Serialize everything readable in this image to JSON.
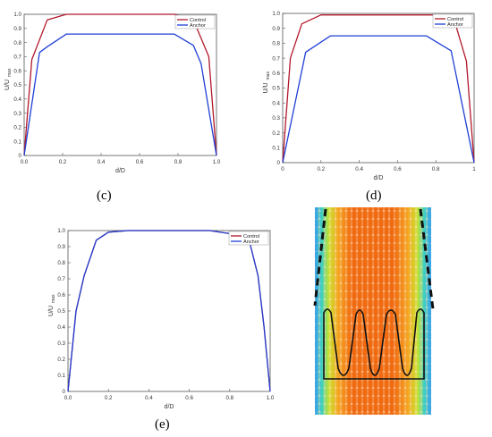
{
  "panels": [
    {
      "label": "(c)"
    },
    {
      "label": "(d)"
    },
    {
      "label": "(e)"
    }
  ],
  "colors": {
    "control": "#b2182b",
    "anchor": "#1f3fd6"
  },
  "chart_data": [
    {
      "type": "line",
      "panel": "(c)",
      "xlabel": "d/D",
      "ylabel": "U/U",
      "ylabel_sub": "max",
      "xlim": [
        0,
        1
      ],
      "ylim": [
        0,
        1
      ],
      "xticks": [
        "0.0",
        "0.2",
        "0.4",
        "0.6",
        "0.8",
        "1.0"
      ],
      "yticks": [
        "0",
        "0.1",
        "0.2",
        "0.3",
        "0.4",
        "0.5",
        "0.6",
        "0.7",
        "0.8",
        "0.9",
        "1.0"
      ],
      "legend": "top-right",
      "series": [
        {
          "name": "Control",
          "color": "#b2182b",
          "x": [
            0,
            0.04,
            0.12,
            0.22,
            0.5,
            0.78,
            0.88,
            0.96,
            1.0
          ],
          "y": [
            0,
            0.68,
            0.96,
            1.0,
            1.0,
            1.0,
            0.96,
            0.7,
            0
          ]
        },
        {
          "name": "Anchor",
          "color": "#1f3fd6",
          "x": [
            0,
            0.08,
            0.12,
            0.22,
            0.5,
            0.78,
            0.88,
            0.92,
            1.0
          ],
          "y": [
            0,
            0.73,
            0.77,
            0.86,
            0.86,
            0.86,
            0.78,
            0.65,
            0
          ]
        }
      ]
    },
    {
      "type": "line",
      "panel": "(d)",
      "xlabel": "d/D",
      "ylabel": "U/U",
      "ylabel_sub": "max",
      "xlim": [
        0,
        1
      ],
      "ylim": [
        0,
        1
      ],
      "xticks": [
        "0",
        "0.2",
        "0.4",
        "0.6",
        "0.8",
        "1"
      ],
      "yticks": [
        "0",
        "0.1",
        "0.2",
        "0.3",
        "0.4",
        "0.5",
        "0.6",
        "0.7",
        "0.8",
        "0.9",
        "1.0"
      ],
      "legend": "top-right",
      "series": [
        {
          "name": "Control",
          "color": "#b2182b",
          "x": [
            0,
            0.04,
            0.1,
            0.2,
            0.5,
            0.8,
            0.9,
            0.96,
            1.0
          ],
          "y": [
            0,
            0.7,
            0.93,
            0.99,
            0.99,
            0.99,
            0.94,
            0.68,
            0
          ]
        },
        {
          "name": "Anchor",
          "color": "#1f3fd6",
          "x": [
            0,
            0.12,
            0.25,
            0.5,
            0.75,
            0.88,
            1.0
          ],
          "y": [
            0,
            0.74,
            0.85,
            0.85,
            0.85,
            0.75,
            0
          ]
        }
      ]
    },
    {
      "type": "line",
      "panel": "(e)",
      "xlabel": "d/D",
      "ylabel": "U/U",
      "ylabel_sub": "max",
      "xlim": [
        0,
        1
      ],
      "ylim": [
        0,
        1
      ],
      "xticks": [
        "0.0",
        "0.2",
        "0.4",
        "0.6",
        "0.8",
        "1.0"
      ],
      "yticks": [
        "0",
        "0.1",
        "0.2",
        "0.3",
        "0.4",
        "0.5",
        "0.6",
        "0.7",
        "0.8",
        "0.9",
        "1.0"
      ],
      "legend": "top-right",
      "series": [
        {
          "name": "Control",
          "color": "#b2182b",
          "x": [
            0,
            0.04,
            0.08,
            0.14,
            0.2,
            0.3,
            0.5,
            0.7,
            0.86,
            0.9,
            0.94,
            0.97,
            1.0
          ],
          "y": [
            0,
            0.5,
            0.72,
            0.94,
            0.99,
            1.0,
            1.0,
            1.0,
            0.97,
            0.92,
            0.72,
            0.4,
            0
          ]
        },
        {
          "name": "Anchor",
          "color": "#1f3fd6",
          "x": [
            0,
            0.04,
            0.08,
            0.14,
            0.2,
            0.3,
            0.5,
            0.7,
            0.86,
            0.9,
            0.94,
            0.97,
            1.0
          ],
          "y": [
            0,
            0.5,
            0.72,
            0.94,
            0.99,
            1.0,
            1.0,
            1.0,
            0.97,
            0.92,
            0.72,
            0.4,
            0
          ]
        }
      ]
    }
  ]
}
